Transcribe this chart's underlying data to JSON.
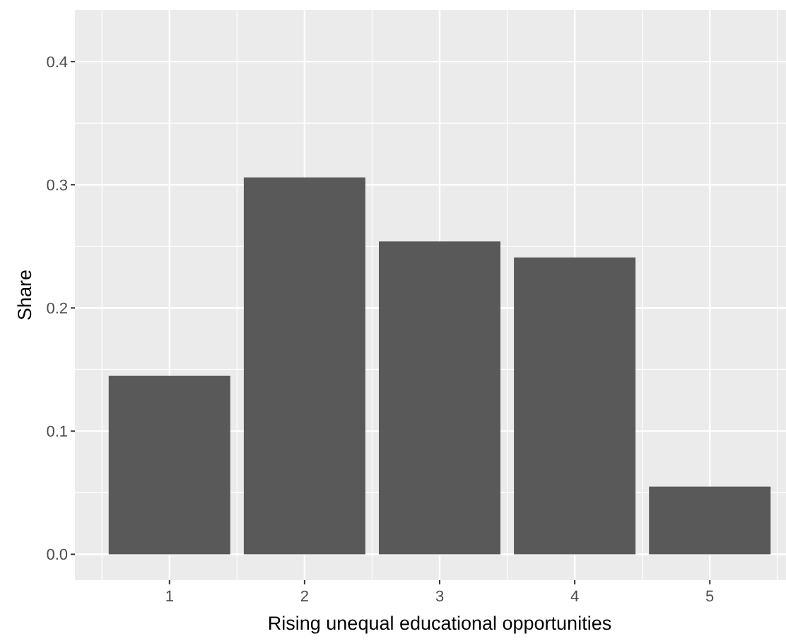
{
  "chart_data": {
    "type": "bar",
    "xlabel": "Rising unequal educational opportunities",
    "ylabel": "Share",
    "categories": [
      "1",
      "2",
      "3",
      "4",
      "5"
    ],
    "values": [
      0.145,
      0.306,
      0.254,
      0.241,
      0.055
    ],
    "color": "#595959",
    "ylim": [
      -0.021,
      0.442
    ],
    "yticks": [
      {
        "value": 0,
        "label": "0.0"
      },
      0.1,
      0.2,
      0.3,
      0.4
    ],
    "grid": true
  }
}
